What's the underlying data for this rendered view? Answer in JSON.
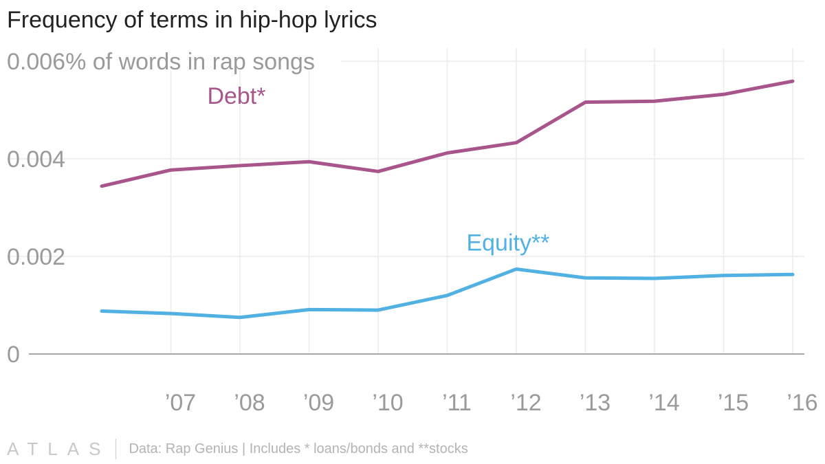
{
  "title": "Frequency of terms in hip-hop lyrics",
  "footer": {
    "brand": "ATLAS",
    "source": "Data: Rap Genius | Includes * loans/bonds and **stocks"
  },
  "chart_data": {
    "type": "line",
    "title": "Frequency of terms in hip-hop lyrics",
    "ylabel": "% of words in rap songs",
    "xlabel": "",
    "x": [
      2006,
      2007,
      2008,
      2009,
      2010,
      2011,
      2012,
      2013,
      2014,
      2015,
      2016
    ],
    "x_tick_values": [
      2007,
      2008,
      2009,
      2010,
      2011,
      2012,
      2013,
      2014,
      2015,
      2016
    ],
    "x_tick_labels": [
      "’07",
      "’08",
      "’09",
      "’10",
      "’11",
      "’12",
      "’13",
      "’14",
      "’15",
      "’16"
    ],
    "y_tick_values": [
      0,
      0.002,
      0.004,
      0.006
    ],
    "y_tick_labels": [
      "0",
      "0.002",
      "0.004",
      "0.006"
    ],
    "y_unit_suffix": "% of words in rap songs",
    "xlim": [
      2006,
      2016
    ],
    "ylim": [
      0,
      0.006
    ],
    "grid": true,
    "legend": "inline labels",
    "series": [
      {
        "name": "Debt*",
        "color": "#a8558c",
        "values": [
          0.00344,
          0.00377,
          0.00386,
          0.00394,
          0.00374,
          0.00412,
          0.00433,
          0.00516,
          0.00518,
          0.00532,
          0.00559
        ]
      },
      {
        "name": "Equity**",
        "color": "#51b1e2",
        "values": [
          0.00088,
          0.00083,
          0.00075,
          0.00091,
          0.0009,
          0.0012,
          0.00174,
          0.00156,
          0.00155,
          0.00161,
          0.00163
        ]
      }
    ]
  }
}
